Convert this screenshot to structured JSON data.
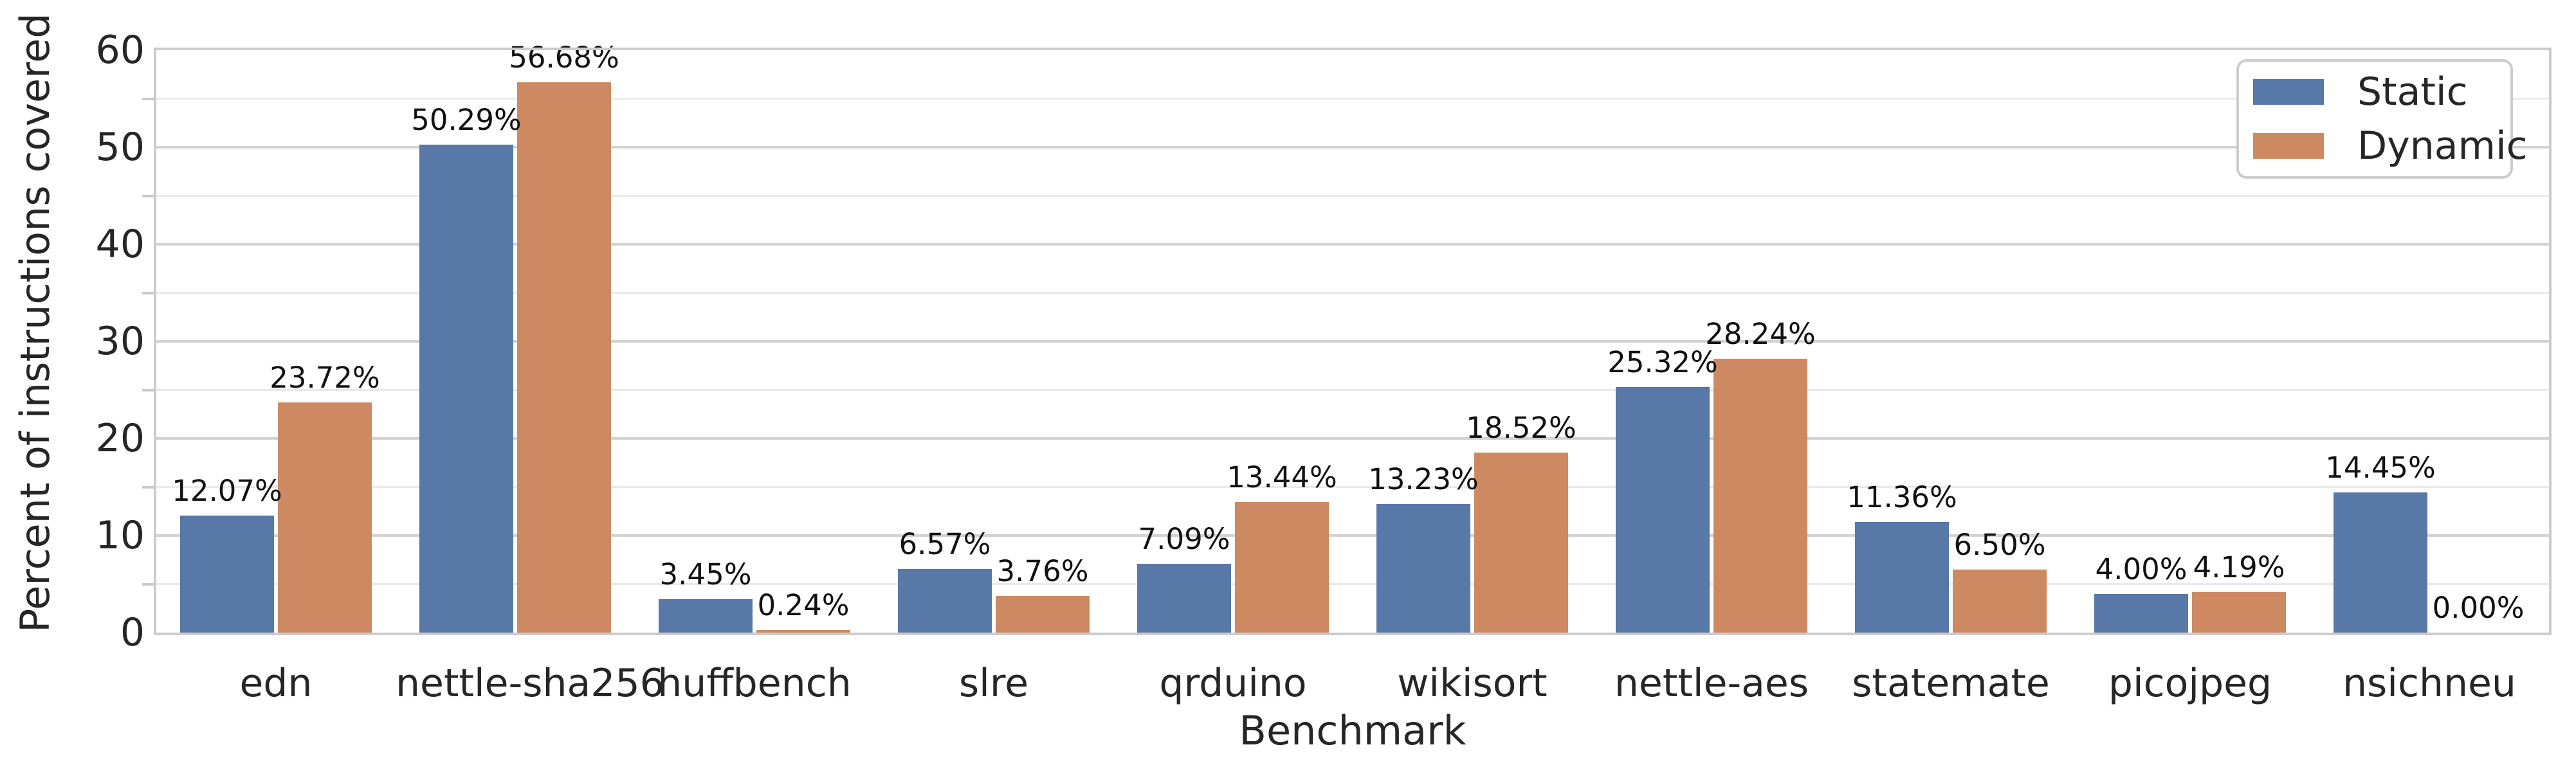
{
  "figure": {
    "background_color": "#ffffff",
    "text_color": "#262626",
    "grid_major_color": "#d2d2d2",
    "grid_minor_color": "#eaeaea",
    "spine_color": "#cccccc"
  },
  "chart_data": {
    "type": "bar",
    "title": "",
    "xlabel": "Benchmark",
    "ylabel": "Percent of instructions covered",
    "categories": [
      "edn",
      "nettle-sha256",
      "huffbench",
      "slre",
      "qrduino",
      "wikisort",
      "nettle-aes",
      "statemate",
      "picojpeg",
      "nsichneu"
    ],
    "series": [
      {
        "name": "Static",
        "color": "#5878a7",
        "values": [
          12.07,
          50.29,
          3.45,
          6.57,
          7.09,
          13.23,
          25.32,
          11.36,
          4.0,
          14.45
        ],
        "labels": [
          "12.07%",
          "50.29%",
          "3.45%",
          "6.57%",
          "7.09%",
          "13.23%",
          "25.32%",
          "11.36%",
          "4.00%",
          "14.45%"
        ]
      },
      {
        "name": "Dynamic",
        "color": "#cd8a62",
        "values": [
          23.72,
          56.68,
          0.24,
          3.76,
          13.44,
          18.52,
          28.24,
          6.5,
          4.19,
          0.0
        ],
        "labels": [
          "23.72%",
          "56.68%",
          "0.24%",
          "3.76%",
          "13.44%",
          "18.52%",
          "28.24%",
          "6.50%",
          "4.19%",
          "0.00%"
        ]
      }
    ],
    "ylim": [
      0,
      60
    ],
    "yticks": [
      0,
      10,
      20,
      30,
      40,
      50,
      60
    ],
    "yticks_minor": [
      5,
      15,
      25,
      35,
      45,
      55
    ],
    "grid": true,
    "legend_position": "upper right"
  }
}
